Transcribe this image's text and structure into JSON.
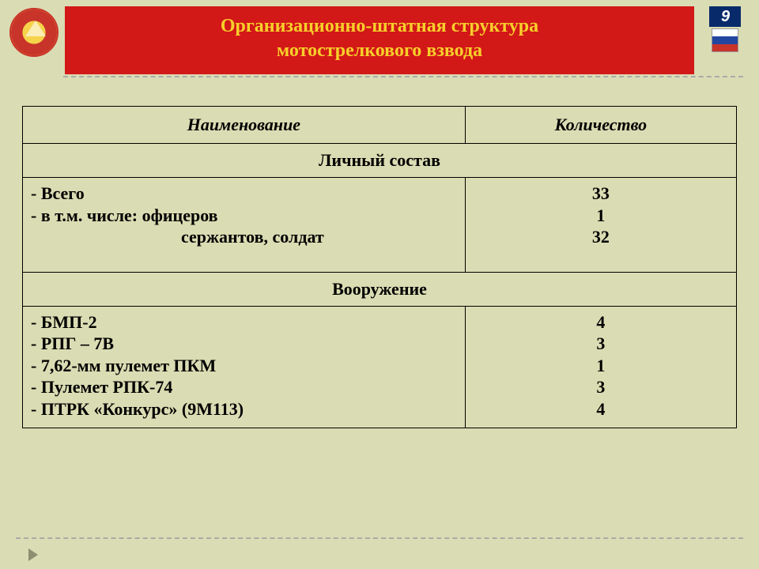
{
  "header": {
    "title_line1": "Организационно-штатная структура",
    "title_line2": "мотострелкового взвода",
    "page_number": "9",
    "title_bg": "#d31818",
    "title_color": "#f7cf2a"
  },
  "table": {
    "columns": {
      "name": "Наименование",
      "qty": "Количество"
    },
    "section1_title": "Личный состав",
    "section1": {
      "name_lines": [
        "- Всего",
        "- в т.м. числе:    офицеров",
        "сержантов, солдат"
      ],
      "qty_lines": [
        "33",
        "1",
        "32"
      ]
    },
    "section2_title": "Вооружение",
    "section2": {
      "name_lines": [
        "- БМП-2",
        "- РПГ – 7В",
        "- 7,62-мм пулемет ПКМ",
        "- Пулемет РПК-74",
        "- ПТРК «Конкурс» (9М113)"
      ],
      "qty_lines": [
        "4",
        "3",
        "1",
        "3",
        "4"
      ]
    }
  },
  "colors": {
    "page_bg": "#dadcb3",
    "border": "#000000"
  }
}
